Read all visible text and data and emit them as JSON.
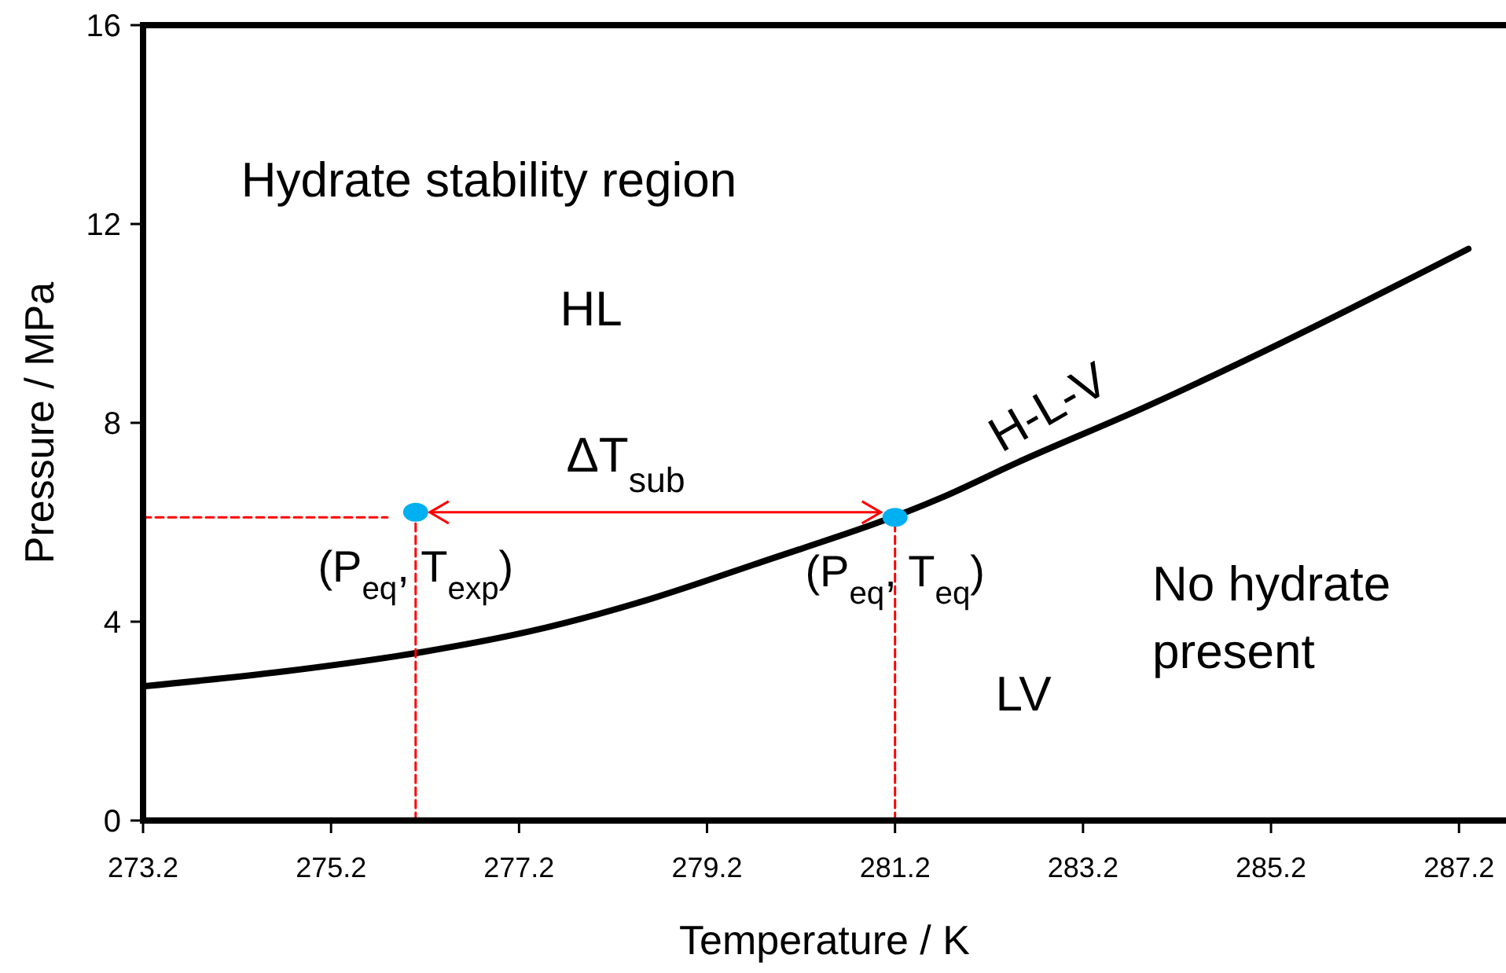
{
  "chart_data": {
    "type": "line",
    "xlabel": "Temperature / K",
    "ylabel": "Pressure / MPa",
    "xlim": [
      273.2,
      287.7
    ],
    "xticks": [
      273.2,
      275.2,
      277.2,
      279.2,
      281.2,
      283.2,
      285.2,
      287.2
    ],
    "ylim": [
      0,
      16
    ],
    "yticks": [
      0,
      4,
      8,
      12,
      16
    ],
    "grid": false,
    "series": [
      {
        "color": "#000000",
        "x": [
          273.2,
          274.7,
          276.2,
          277.3,
          278.5,
          279.7,
          281.7,
          282.5,
          283.9,
          285.3,
          287.3
        ],
        "values": [
          2.7,
          3.0,
          3.4,
          3.8,
          4.4,
          5.15,
          6.5,
          7.2,
          8.35,
          9.6,
          11.5
        ]
      },
      {
        "type": "line",
        "color": "#ff0000",
        "line_style": "dashed",
        "x": [
          276.1,
          276.1
        ],
        "values": [
          0,
          6.2
        ]
      },
      {
        "type": "line",
        "color": "#ff0000",
        "line_style": "dashed",
        "x": [
          273.2,
          275.8
        ],
        "values": [
          6.1,
          6.1
        ]
      },
      {
        "type": "line",
        "color": "#ff0000",
        "line_style": "dashed",
        "x": [
          281.2,
          281.2
        ],
        "values": [
          0,
          6.1
        ]
      },
      {
        "type": "scatter",
        "color": "#00b0f0",
        "marker": "circle",
        "x": [
          276.1,
          281.2
        ],
        "values": [
          6.2,
          6.1
        ]
      }
    ],
    "annotations": [
      "Hydrate stability region",
      "HL",
      "ΔT$_{sub}$",
      {
        "text": "(P$_{eq}$, T$_{exp}$)",
        "x": 276.1,
        "y": 6.2
      },
      {
        "text": "(P$_{eq}$, T$_{eq}$)",
        "x": 281.2,
        "y": 6.1
      },
      "H-L-V",
      "LV",
      "No hydrate\npresent"
    ]
  }
}
